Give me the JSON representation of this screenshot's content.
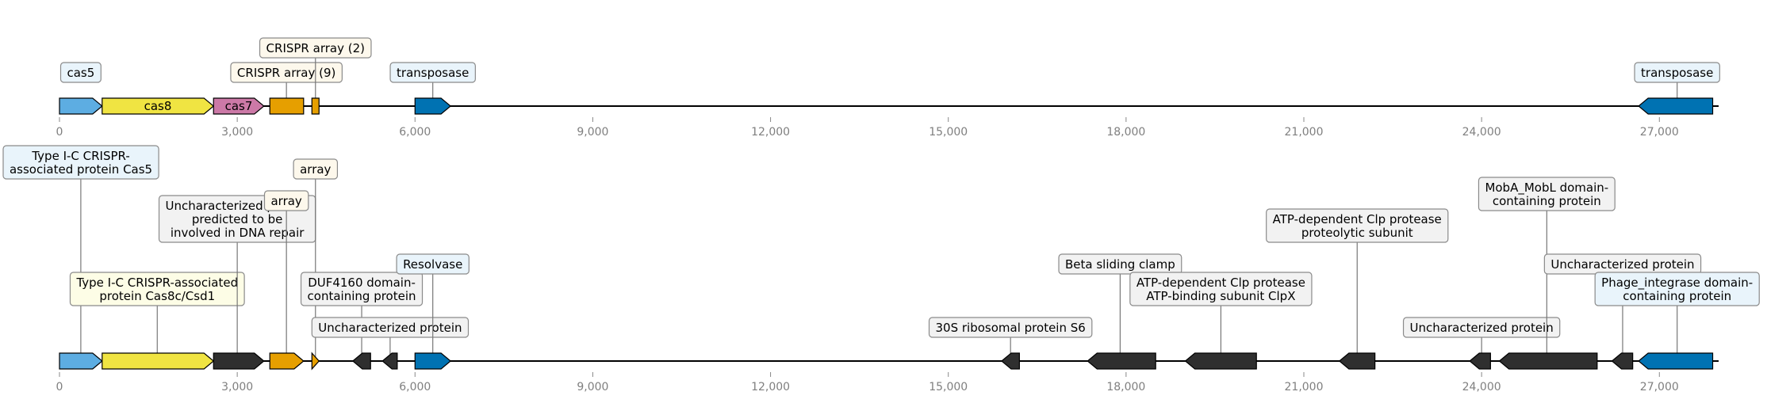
{
  "scale": {
    "max_bp": 28000,
    "ticks": [
      0,
      3000,
      6000,
      9000,
      12000,
      15000,
      18000,
      21000,
      24000,
      27000
    ],
    "tick_labels": [
      "0",
      "3,000",
      "6,000",
      "9,000",
      "12,000",
      "15,000",
      "18,000",
      "21,000",
      "24,000",
      "27,000"
    ]
  },
  "colors": {
    "cas5": "#5dade2",
    "cas8": "#f0e442",
    "cas7": "#cc79a7",
    "array": "#e69f00",
    "transposase": "#0072b2",
    "other": "#2f2f2f",
    "box_blue": "#e9f4fb",
    "box_yellow": "#fdfde6",
    "box_cream": "#fdf8ec",
    "box_gray": "#f2f2f2"
  },
  "tracks": [
    {
      "name": "overview",
      "features": [
        {
          "start": 0,
          "end": 720,
          "strand": 1,
          "color": "cas5"
        },
        {
          "start": 720,
          "end": 2600,
          "strand": 1,
          "color": "cas8",
          "inner_label": "cas8"
        },
        {
          "start": 2600,
          "end": 3450,
          "strand": 1,
          "color": "cas7",
          "inner_label": "cas7"
        },
        {
          "start": 3550,
          "end": 4120,
          "strand": 0,
          "color": "array"
        },
        {
          "start": 4260,
          "end": 4380,
          "strand": 0,
          "color": "array"
        },
        {
          "start": 6000,
          "end": 6600,
          "strand": 1,
          "color": "transposase"
        },
        {
          "start": 26650,
          "end": 27900,
          "strand": -1,
          "color": "transposase"
        }
      ],
      "annotations": [
        {
          "text": "cas5",
          "style": "box_blue",
          "at_bp": 360,
          "level": 0,
          "stem": false
        },
        {
          "text": "CRISPR array (9)",
          "style": "box_cream",
          "at_bp": 3830,
          "level": 0,
          "stem": true
        },
        {
          "text": "CRISPR array (2)",
          "style": "box_cream",
          "at_bp": 4320,
          "level": 1,
          "stem": true
        },
        {
          "text": "transposase",
          "style": "box_blue",
          "at_bp": 6300,
          "level": 0,
          "stem": true
        },
        {
          "text": "transposase",
          "style": "box_blue",
          "at_bp": 27300,
          "level": 0,
          "stem": true
        }
      ]
    },
    {
      "name": "detail",
      "features": [
        {
          "start": 0,
          "end": 720,
          "strand": 1,
          "color": "cas5"
        },
        {
          "start": 720,
          "end": 2600,
          "strand": 1,
          "color": "cas8"
        },
        {
          "start": 2600,
          "end": 3450,
          "strand": 1,
          "color": "other"
        },
        {
          "start": 3550,
          "end": 4120,
          "strand": 1,
          "color": "array"
        },
        {
          "start": 4260,
          "end": 4380,
          "strand": 1,
          "color": "array"
        },
        {
          "start": 4950,
          "end": 5250,
          "strand": -1,
          "color": "other"
        },
        {
          "start": 5450,
          "end": 5700,
          "strand": -1,
          "color": "other"
        },
        {
          "start": 6000,
          "end": 6600,
          "strand": 1,
          "color": "transposase"
        },
        {
          "start": 15900,
          "end": 16200,
          "strand": -1,
          "color": "other"
        },
        {
          "start": 17350,
          "end": 18500,
          "strand": -1,
          "color": "other"
        },
        {
          "start": 19000,
          "end": 20200,
          "strand": -1,
          "color": "other"
        },
        {
          "start": 21600,
          "end": 22200,
          "strand": -1,
          "color": "other"
        },
        {
          "start": 23800,
          "end": 24150,
          "strand": -1,
          "color": "other"
        },
        {
          "start": 24300,
          "end": 25950,
          "strand": -1,
          "color": "other"
        },
        {
          "start": 26200,
          "end": 26550,
          "strand": -1,
          "color": "other"
        },
        {
          "start": 26650,
          "end": 27900,
          "strand": -1,
          "color": "transposase"
        }
      ],
      "annotations": [
        {
          "text": "Type I-C CRISPR-\nassociated protein Cas5",
          "style": "box_blue",
          "at_bp": 360,
          "level": 5,
          "stem": true
        },
        {
          "text": "Type I-C CRISPR-associated\nprotein Cas8c/Csd1",
          "style": "box_yellow",
          "at_bp": 1650,
          "level": 1,
          "stem": true
        },
        {
          "text": "Uncharacterized protein\npredicted to be\ninvolved in DNA repair",
          "style": "box_gray",
          "at_bp": 3000,
          "level": 3,
          "stem": true
        },
        {
          "text": "array",
          "style": "box_cream",
          "at_bp": 3830,
          "level": 4,
          "stem": true
        },
        {
          "text": "array",
          "style": "box_cream",
          "at_bp": 4320,
          "level": 5,
          "stem": true
        },
        {
          "text": "DUF4160 domain-\ncontaining protein",
          "style": "box_gray",
          "at_bp": 5100,
          "level": 1,
          "stem": true
        },
        {
          "text": "Uncharacterized protein",
          "style": "box_gray",
          "at_bp": 5580,
          "level": 0,
          "stem": true
        },
        {
          "text": "Resolvase",
          "style": "box_blue",
          "at_bp": 6300,
          "level": 2,
          "stem": true
        },
        {
          "text": "30S ribosomal protein S6",
          "style": "box_gray",
          "at_bp": 16050,
          "level": 0,
          "stem": true
        },
        {
          "text": "Beta sliding clamp",
          "style": "box_gray",
          "at_bp": 17900,
          "level": 2,
          "stem": true
        },
        {
          "text": "ATP-dependent Clp protease\nATP-binding subunit ClpX",
          "style": "box_gray",
          "at_bp": 19600,
          "level": 1,
          "stem": true
        },
        {
          "text": "ATP-dependent Clp protease\nproteolytic subunit",
          "style": "box_gray",
          "at_bp": 21900,
          "level": 3,
          "stem": true
        },
        {
          "text": "Uncharacterized protein",
          "style": "box_gray",
          "at_bp": 24000,
          "level": 0,
          "stem": true
        },
        {
          "text": "MobA_MobL domain-\ncontaining protein",
          "style": "box_gray",
          "at_bp": 25100,
          "level": 4,
          "stem": true
        },
        {
          "text": "Uncharacterized protein",
          "style": "box_gray",
          "at_bp": 26380,
          "level": 2,
          "stem": true
        },
        {
          "text": "Phage_integrase domain-\ncontaining protein",
          "style": "box_blue",
          "at_bp": 27300,
          "level": 1,
          "stem": true
        }
      ]
    }
  ]
}
